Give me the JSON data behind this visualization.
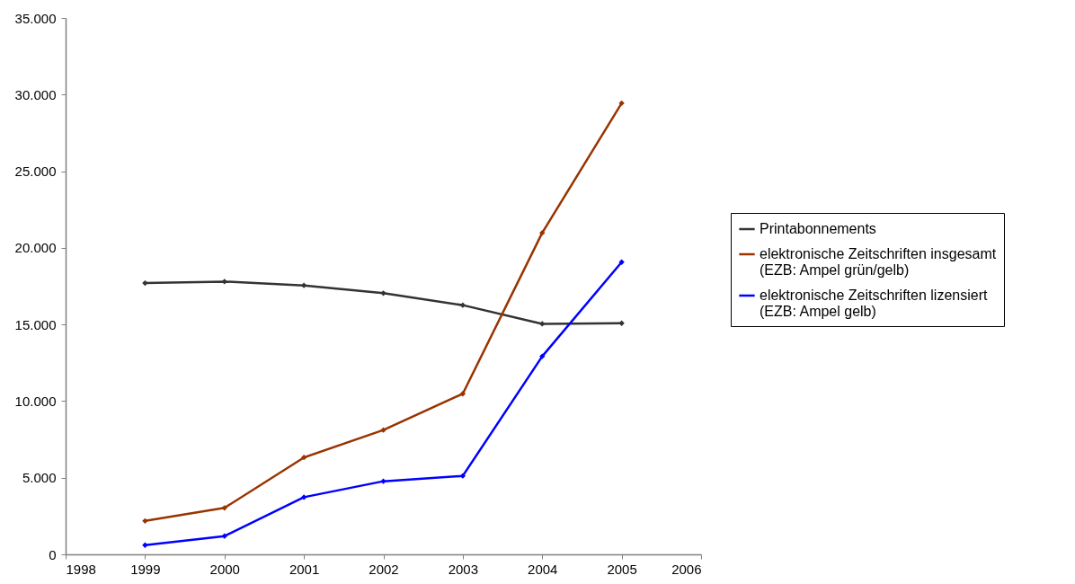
{
  "chart_data": {
    "type": "line",
    "x": [
      1999,
      2000,
      2001,
      2002,
      2003,
      2004,
      2005
    ],
    "xlim": [
      1998,
      2006
    ],
    "xticks": [
      1998,
      1999,
      2000,
      2001,
      2002,
      2003,
      2004,
      2005,
      2006
    ],
    "ylim": [
      0,
      35000
    ],
    "yticks": [
      0,
      {
        "value": 5000,
        "label": "5.000"
      },
      {
        "value": 10000,
        "label": "10.000"
      },
      {
        "value": 15000,
        "label": "15.000"
      },
      {
        "value": 20000,
        "label": "20.000"
      },
      {
        "value": 25000,
        "label": "25.000"
      },
      {
        "value": 30000,
        "label": "30.000"
      },
      {
        "value": 35000,
        "label": "35.000"
      }
    ],
    "grid": false,
    "legend": "right",
    "marker": "diamond",
    "series": [
      {
        "name": "Printabonnements",
        "color": "#333333",
        "values": [
          17700,
          17800,
          17550,
          17040,
          16260,
          15040,
          15080
        ]
      },
      {
        "name": "elektronische Zeitschriften insgesamt (EZB: Ampel grün/gelb)",
        "color": "#993300",
        "values": [
          2180,
          3030,
          6320,
          8110,
          10480,
          20980,
          29440
        ]
      },
      {
        "name": "elektronische Zeitschriften lizensiert (EZB: Ampel gelb)",
        "color": "#0000ff",
        "values": [
          600,
          1190,
          3730,
          4770,
          5120,
          12920,
          19070
        ]
      }
    ]
  }
}
